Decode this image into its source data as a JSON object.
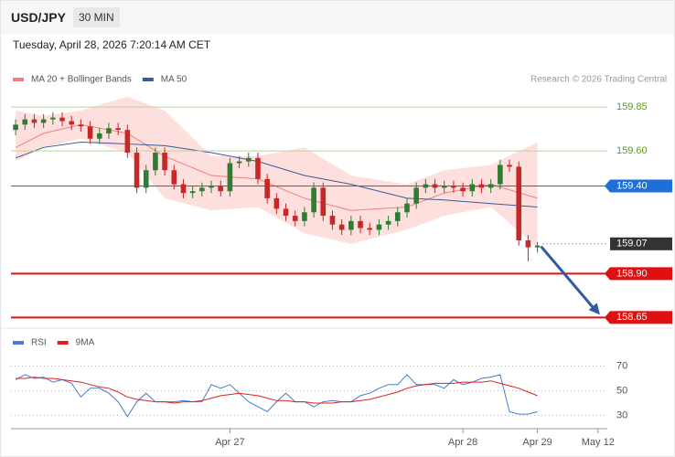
{
  "header": {
    "symbol": "USD/JPY",
    "timeframe": "30 MIN",
    "timestamp": "Tuesday, April 28, 2026 7:20:14 AM CET",
    "copyright": "Research © 2026 Trading Central"
  },
  "chart_data": [
    {
      "type": "candlestick",
      "xlim": [
        -0.5,
        63.5
      ],
      "ylim": [
        158.61,
        159.95
      ],
      "up_color": "#2e7d32",
      "down_color": "#c62828",
      "open": [
        159.72,
        159.75,
        159.78,
        159.76,
        159.78,
        159.79,
        159.77,
        159.75,
        159.74,
        159.67,
        159.7,
        159.73,
        159.72,
        159.59,
        159.39,
        159.49,
        159.59,
        159.49,
        159.41,
        159.36,
        159.37,
        159.39,
        159.4,
        159.37,
        159.53,
        159.54,
        159.56,
        159.44,
        159.33,
        159.27,
        159.23,
        159.2,
        159.25,
        159.39,
        159.23,
        159.18,
        159.15,
        159.2,
        159.16,
        159.15,
        159.18,
        159.2,
        159.25,
        159.3,
        159.39,
        159.41,
        159.39,
        159.4,
        159.39,
        159.37,
        159.41,
        159.39,
        159.41,
        159.52,
        159.51,
        159.09,
        159.05
      ],
      "high": [
        159.78,
        159.81,
        159.81,
        159.81,
        159.82,
        159.82,
        159.8,
        159.78,
        159.77,
        159.73,
        159.76,
        159.76,
        159.75,
        159.62,
        159.52,
        159.62,
        159.62,
        159.52,
        159.44,
        159.4,
        159.42,
        159.43,
        159.43,
        159.56,
        159.57,
        159.59,
        159.59,
        159.47,
        159.36,
        159.3,
        159.26,
        159.28,
        159.42,
        159.42,
        159.26,
        159.21,
        159.23,
        159.23,
        159.19,
        159.21,
        159.23,
        159.28,
        159.33,
        159.42,
        159.44,
        159.44,
        159.43,
        159.43,
        159.42,
        159.44,
        159.44,
        159.44,
        159.55,
        159.55,
        159.54,
        159.12,
        159.08
      ],
      "low": [
        159.69,
        159.72,
        159.73,
        159.73,
        159.75,
        159.74,
        159.72,
        159.71,
        159.64,
        159.64,
        159.67,
        159.69,
        159.56,
        159.36,
        159.36,
        159.46,
        159.46,
        159.38,
        159.33,
        159.33,
        159.34,
        159.36,
        159.34,
        159.34,
        159.5,
        159.51,
        159.41,
        159.3,
        159.24,
        159.2,
        159.17,
        159.17,
        159.22,
        159.2,
        159.15,
        159.12,
        159.12,
        159.13,
        159.12,
        159.12,
        159.15,
        159.17,
        159.22,
        159.27,
        159.36,
        159.36,
        159.36,
        159.36,
        159.34,
        159.34,
        159.36,
        159.36,
        159.38,
        159.48,
        159.06,
        158.97,
        159.02
      ],
      "close": [
        159.75,
        159.78,
        159.76,
        159.78,
        159.79,
        159.77,
        159.75,
        159.74,
        159.67,
        159.7,
        159.73,
        159.72,
        159.59,
        159.39,
        159.49,
        159.59,
        159.49,
        159.41,
        159.36,
        159.37,
        159.39,
        159.4,
        159.37,
        159.53,
        159.54,
        159.56,
        159.44,
        159.33,
        159.27,
        159.23,
        159.2,
        159.25,
        159.39,
        159.23,
        159.18,
        159.15,
        159.2,
        159.16,
        159.15,
        159.18,
        159.2,
        159.25,
        159.3,
        159.39,
        159.41,
        159.39,
        159.4,
        159.39,
        159.37,
        159.41,
        159.39,
        159.41,
        159.52,
        159.51,
        159.09,
        159.05,
        159.06
      ],
      "series": [
        {
          "name": "MA 20 + Bollinger Bands",
          "color": "#f08080",
          "band_color": "#fde0de",
          "x": [
            0,
            3,
            7,
            12,
            16,
            21,
            26,
            31,
            36,
            42,
            46,
            51,
            56
          ],
          "values": [
            159.62,
            159.7,
            159.75,
            159.7,
            159.57,
            159.46,
            159.44,
            159.33,
            159.26,
            159.28,
            159.36,
            159.41,
            159.33
          ],
          "upper": [
            159.83,
            159.8,
            159.83,
            159.91,
            159.83,
            159.57,
            159.57,
            159.62,
            159.46,
            159.41,
            159.49,
            159.52,
            159.65
          ],
          "lower": [
            159.54,
            159.62,
            159.67,
            159.59,
            159.33,
            159.26,
            159.28,
            159.13,
            159.07,
            159.15,
            159.23,
            159.28,
            159.05
          ]
        },
        {
          "name": "MA 50",
          "color": "#3d5a99",
          "x": [
            0,
            3,
            7,
            12,
            16,
            21,
            26,
            31,
            36,
            42,
            46,
            51,
            56
          ],
          "values": [
            159.56,
            159.62,
            159.65,
            159.64,
            159.63,
            159.59,
            159.54,
            159.46,
            159.41,
            159.33,
            159.32,
            159.3,
            159.28
          ]
        }
      ],
      "levels": [
        {
          "value": 159.85,
          "color": "#5a9e1a",
          "style": "text"
        },
        {
          "value": 159.6,
          "label": "159.60",
          "color": "#5a9e1a",
          "style": "text"
        },
        {
          "value": 159.4,
          "label": "159.40",
          "color": "#1e6fd9",
          "style": "box"
        },
        {
          "value": 159.07,
          "color": "#333333",
          "style": "dotted"
        },
        {
          "value": 158.9,
          "label": "158.90",
          "color": "#e01010",
          "style": "box"
        },
        {
          "value": 158.65,
          "color": "#e01010",
          "style": "box"
        }
      ]
    },
    {
      "type": "line",
      "xlim": [
        -0.5,
        63.5
      ],
      "ylim": [
        20,
        80
      ],
      "yticks": [
        70,
        50,
        30
      ],
      "grid": true,
      "xticks": [
        {
          "value": 23,
          "label": "Apr 27"
        },
        {
          "value": 48,
          "label": "Apr 28"
        },
        {
          "value": 56,
          "label": "Apr 29"
        },
        {
          "value": 62.5,
          "label": "May 12"
        }
      ],
      "series": [
        {
          "name": "RSI",
          "color": "#4a7bd0",
          "values": [
            59,
            63,
            60,
            61,
            57,
            59,
            56,
            45,
            52,
            52,
            48,
            41,
            29,
            41,
            48,
            41,
            41,
            41,
            42,
            41,
            41,
            55,
            52,
            55,
            48,
            41,
            37,
            33,
            41,
            48,
            41,
            41,
            37,
            41,
            42,
            41,
            41,
            46,
            48,
            52,
            55,
            55,
            63,
            55,
            55,
            55,
            52,
            59,
            55,
            57,
            60,
            61,
            63,
            33,
            31,
            31,
            33
          ]
        },
        {
          "name": "9MA",
          "color": "#e02020",
          "values": [
            60,
            60,
            61,
            60,
            60,
            59,
            58,
            57,
            55,
            53,
            52,
            49,
            45,
            43,
            42,
            41,
            41,
            40,
            41,
            41,
            42,
            44,
            46,
            47,
            48,
            47,
            46,
            44,
            42,
            42,
            41,
            41,
            40,
            40,
            40,
            41,
            41,
            42,
            43,
            45,
            47,
            49,
            52,
            54,
            55,
            56,
            56,
            56,
            57,
            57,
            57,
            58,
            56,
            54,
            52,
            49,
            46
          ]
        }
      ]
    }
  ]
}
